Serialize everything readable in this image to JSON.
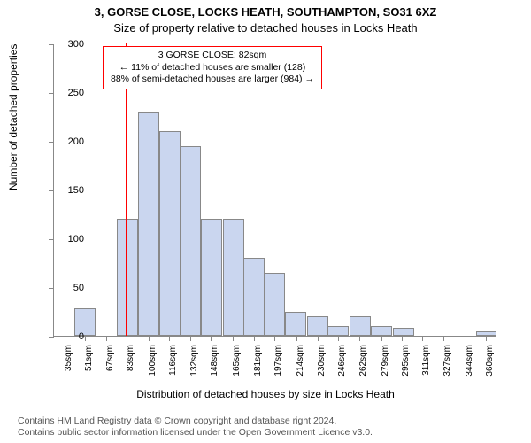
{
  "title_line1": "3, GORSE CLOSE, LOCKS HEATH, SOUTHAMPTON, SO31 6XZ",
  "title_line2": "Size of property relative to detached houses in Locks Heath",
  "ylabel": "Number of detached properties",
  "xlabel": "Distribution of detached houses by size in Locks Heath",
  "footer_line1": "Contains HM Land Registry data © Crown copyright and database right 2024.",
  "footer_line2": "Contains public sector information licensed under the Open Government Licence v3.0.",
  "chart": {
    "type": "histogram",
    "bar_fill": "#cad6ef",
    "bar_stroke": "#888888",
    "background": "#ffffff",
    "marker_color": "#ff0000",
    "info_border": "#ff0000",
    "xlim_min": 27,
    "xlim_max": 368,
    "ylim_min": 0,
    "ylim_max": 300,
    "yticks": [
      0,
      50,
      100,
      150,
      200,
      250,
      300
    ],
    "xticks": [
      35,
      51,
      67,
      83,
      100,
      116,
      132,
      148,
      165,
      181,
      197,
      214,
      230,
      246,
      262,
      279,
      295,
      311,
      327,
      344,
      360
    ],
    "xtick_unit": "sqm",
    "bin_width": 16.3,
    "bins": [
      {
        "start": 27,
        "count": 0
      },
      {
        "start": 43,
        "count": 28
      },
      {
        "start": 59,
        "count": 0
      },
      {
        "start": 75.5,
        "count": 120
      },
      {
        "start": 92,
        "count": 230
      },
      {
        "start": 108,
        "count": 210
      },
      {
        "start": 124,
        "count": 195
      },
      {
        "start": 140,
        "count": 120
      },
      {
        "start": 157,
        "count": 120
      },
      {
        "start": 173,
        "count": 80
      },
      {
        "start": 189,
        "count": 65
      },
      {
        "start": 205,
        "count": 25
      },
      {
        "start": 222,
        "count": 20
      },
      {
        "start": 238,
        "count": 10
      },
      {
        "start": 255,
        "count": 20
      },
      {
        "start": 271,
        "count": 10
      },
      {
        "start": 288,
        "count": 8
      },
      {
        "start": 304,
        "count": 0
      },
      {
        "start": 320,
        "count": 0
      },
      {
        "start": 336,
        "count": 0
      },
      {
        "start": 352,
        "count": 5
      }
    ],
    "marker_x": 82,
    "info_box": {
      "line1": "3 GORSE CLOSE: 82sqm",
      "line2": "← 11% of detached houses are smaller (128)",
      "line3": "88% of semi-detached houses are larger (984) →"
    }
  }
}
